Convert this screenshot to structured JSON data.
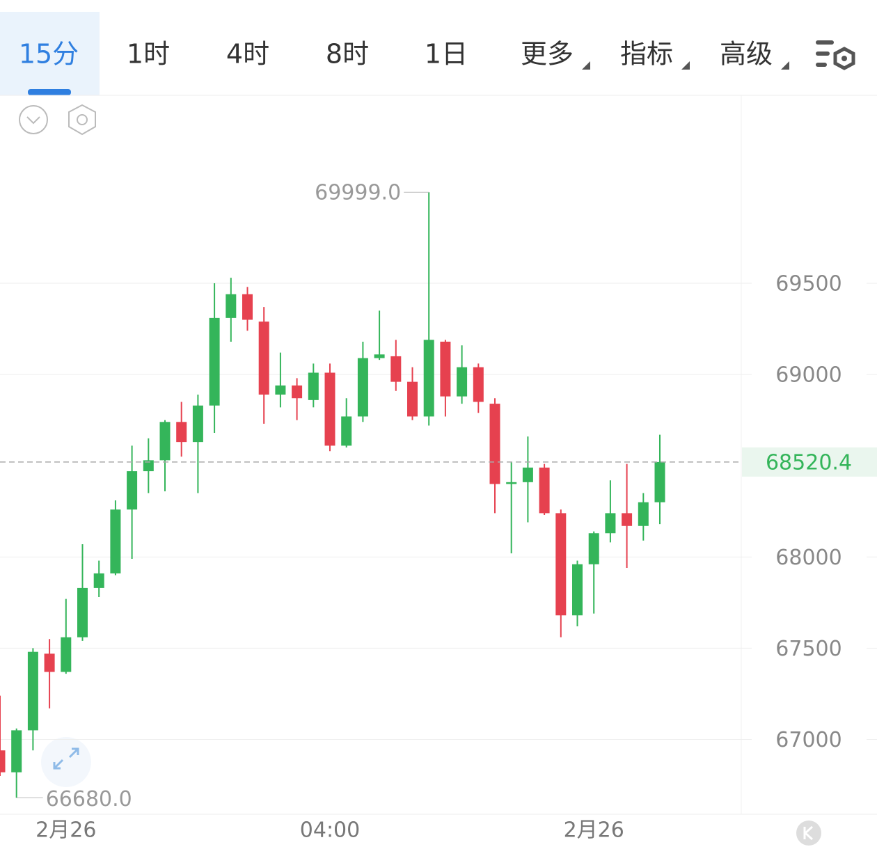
{
  "tabs": [
    "15分",
    "1时",
    "4时",
    "8时",
    "1日",
    "更多",
    "指标",
    "高级"
  ],
  "chart_data": {
    "type": "candlestick",
    "categories": [
      null,
      null,
      null,
      null,
      "2月26",
      null,
      null,
      null,
      null,
      null,
      null,
      null,
      null,
      null,
      null,
      null,
      null,
      null,
      null,
      null,
      "04:00",
      null,
      null,
      null,
      null,
      null,
      null,
      null,
      null,
      null,
      null,
      null,
      null,
      null,
      null,
      null,
      "2月26",
      null,
      null,
      null,
      null
    ],
    "open": [
      66940,
      66820,
      67050,
      67470,
      67370,
      67560,
      67830,
      67910,
      68260,
      68470,
      68530,
      68740,
      68630,
      68830,
      69310,
      69440,
      69290,
      68890,
      68940,
      68860,
      69010,
      68610,
      68770,
      69090,
      69100,
      68960,
      68770,
      69180,
      68880,
      69040,
      68840,
      68400,
      68410,
      68490,
      68240,
      67680,
      67960,
      68130,
      68240,
      68170,
      68300
    ],
    "high": [
      67240,
      67060,
      67500,
      67550,
      67770,
      68070,
      67980,
      68310,
      68610,
      68650,
      68750,
      68850,
      68890,
      69500,
      69530,
      69480,
      69370,
      69120,
      68980,
      69060,
      69060,
      68870,
      69180,
      69350,
      69190,
      69040,
      69999,
      69190,
      69160,
      69060,
      68870,
      68520,
      68660,
      68510,
      68260,
      67980,
      68140,
      68420,
      68510,
      68350,
      68670
    ],
    "low": [
      66800,
      66680,
      66940,
      67170,
      67360,
      67540,
      67780,
      67900,
      67990,
      68350,
      68360,
      68550,
      68350,
      68680,
      69180,
      69240,
      68730,
      68820,
      68750,
      68820,
      68580,
      68600,
      68740,
      69080,
      68910,
      68750,
      68720,
      68770,
      68840,
      68790,
      68240,
      68020,
      68190,
      68230,
      67560,
      67620,
      67690,
      68080,
      67940,
      68090,
      68180
    ],
    "close": [
      66820,
      67050,
      67480,
      67370,
      67560,
      67830,
      67910,
      68260,
      68470,
      68530,
      68740,
      68630,
      68830,
      69310,
      69440,
      69300,
      68890,
      68940,
      68870,
      69010,
      68610,
      68770,
      69090,
      69110,
      68960,
      68770,
      69190,
      68880,
      69040,
      68850,
      68400,
      68410,
      68490,
      68240,
      67680,
      67960,
      68130,
      68240,
      68170,
      68300,
      68520.4
    ],
    "up_color": "#34b55a",
    "down_color": "#e6414f",
    "ylim": [
      66590,
      70530
    ],
    "yticks": [
      67000,
      67500,
      68000,
      69000,
      69500
    ],
    "grid": true,
    "last_price": 68520.4,
    "high_label": {
      "value": 69999,
      "label": "69999.0"
    },
    "low_label": {
      "value": 66680,
      "label": "66680.0"
    }
  }
}
